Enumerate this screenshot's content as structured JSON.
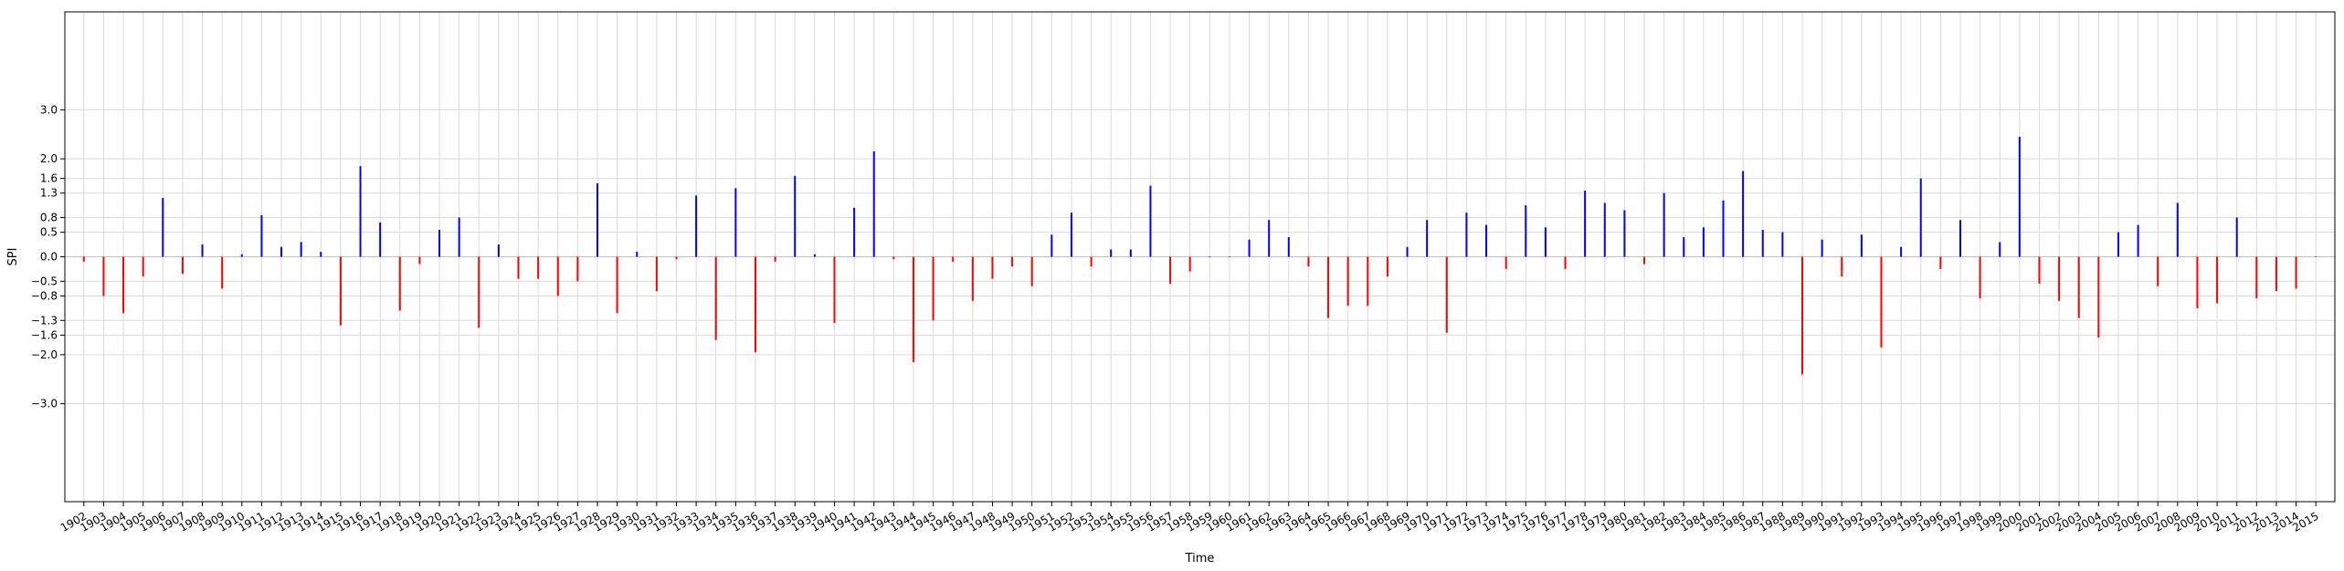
{
  "chart_data": {
    "type": "bar",
    "title": "",
    "xlabel": "Time",
    "ylabel": "SPI",
    "ylim": [
      -5,
      5
    ],
    "yticks": [
      -3.0,
      -2.0,
      -1.6,
      -1.3,
      -0.8,
      -0.5,
      0.0,
      0.5,
      0.8,
      1.3,
      1.6,
      2.0,
      3.0
    ],
    "ytick_labels": [
      "−3.0",
      "−2.0",
      "−1.6",
      "−1.3",
      "−0.8",
      "−0.5",
      "0.0",
      "0.5",
      "0.8",
      "1.3",
      "1.6",
      "2.0",
      "3.0"
    ],
    "grid": true,
    "colors": {
      "positive": "#0000ff",
      "negative": "#ff0000",
      "grid": "#d9d9d9",
      "axis": "#000000"
    },
    "years": [
      1902,
      1903,
      1904,
      1905,
      1906,
      1907,
      1908,
      1909,
      1910,
      1911,
      1912,
      1913,
      1914,
      1915,
      1916,
      1917,
      1918,
      1919,
      1920,
      1921,
      1922,
      1923,
      1924,
      1925,
      1926,
      1927,
      1928,
      1929,
      1930,
      1931,
      1932,
      1933,
      1934,
      1935,
      1936,
      1937,
      1938,
      1939,
      1940,
      1941,
      1942,
      1943,
      1944,
      1945,
      1946,
      1947,
      1948,
      1949,
      1950,
      1951,
      1952,
      1953,
      1954,
      1955,
      1956,
      1957,
      1958,
      1959,
      1960,
      1961,
      1962,
      1963,
      1964,
      1965,
      1966,
      1967,
      1968,
      1969,
      1970,
      1971,
      1972,
      1973,
      1974,
      1975,
      1976,
      1977,
      1978,
      1979,
      1980,
      1981,
      1982,
      1983,
      1984,
      1985,
      1986,
      1987,
      1988,
      1989,
      1990,
      1991,
      1992,
      1993,
      1994,
      1995,
      1996,
      1997,
      1998,
      1999,
      2000,
      2001,
      2002,
      2003,
      2004,
      2005,
      2006,
      2007,
      2008,
      2009,
      2010,
      2011,
      2012,
      2013,
      2014,
      2015
    ],
    "tick_labels": [
      "1902",
      "1903",
      "1904",
      "1905",
      "1906",
      "1907",
      "1908",
      "1909",
      "1910",
      "1911",
      "1912",
      "1913",
      "1914",
      "1915",
      "1916",
      "1917",
      "1918",
      "1919",
      "1920",
      "1921",
      "1922",
      "1923",
      "1924",
      "1925",
      "1926",
      "1927",
      "1928",
      "1929",
      "1930",
      "1931",
      "1932",
      "1933",
      "1934",
      "1935",
      "1936",
      "1937",
      "1938",
      "1939",
      "1940",
      "1941",
      "1942",
      "1943",
      "1944",
      "1945",
      "1946",
      "1947",
      "1948",
      "1949",
      "1950",
      "1951",
      "1952",
      "1953",
      "1954",
      "1955",
      "1956",
      "1957",
      "1958",
      "1959",
      "1960",
      "1961",
      "1962",
      "1963",
      "1964",
      "1965",
      "1966",
      "1967",
      "1968",
      "1969",
      "1970",
      "1971",
      "1972",
      "1973",
      "1974",
      "1975",
      "1976",
      "1977",
      "1978",
      "1979",
      "1980",
      "1981",
      "1982",
      "1983",
      "1984",
      "1985",
      "1986",
      "1987",
      "1988",
      "1989",
      "1990",
      "1991",
      "1992",
      "1993",
      "1994",
      "1995",
      "1996",
      "1997",
      "1998",
      "1999",
      "2000",
      "2001",
      "2002",
      "2003",
      "2004",
      "2005",
      "2006",
      "2007",
      "2008",
      "2009",
      "2010",
      "2011",
      "2012",
      "2013",
      "2014",
      "2015"
    ],
    "values": [
      -0.1,
      -0.8,
      -1.15,
      -0.4,
      1.2,
      -0.35,
      0.25,
      -0.65,
      0.05,
      0.85,
      0.2,
      0.3,
      0.1,
      -1.4,
      1.85,
      0.7,
      -1.1,
      -0.15,
      0.55,
      0.8,
      -1.45,
      0.25,
      -0.45,
      -0.45,
      -0.8,
      -0.5,
      1.5,
      -1.15,
      0.1,
      -0.7,
      -0.05,
      1.25,
      -1.7,
      1.4,
      -1.95,
      -0.1,
      1.65,
      0.05,
      -1.35,
      1.0,
      2.15,
      -0.05,
      -2.15,
      -1.3,
      -0.1,
      -0.9,
      -0.45,
      -0.2,
      -0.6,
      0.45,
      0.9,
      -0.2,
      0.15,
      0.15,
      1.45,
      -0.55,
      -0.3,
      0.0,
      0.0,
      0.35,
      0.75,
      0.4,
      -0.2,
      -1.25,
      -1.0,
      -1.0,
      -0.4,
      0.2,
      0.75,
      -1.55,
      0.9,
      0.65,
      -0.25,
      1.05,
      0.6,
      -0.25,
      1.35,
      1.1,
      0.95,
      -0.15,
      1.3,
      0.4,
      0.6,
      1.15,
      1.75,
      0.55,
      0.5,
      -2.4,
      0.35,
      -0.4,
      0.45,
      -1.85,
      0.2,
      1.6,
      -0.25,
      0.75,
      -0.85,
      0.3,
      2.45,
      -0.55,
      -0.9,
      -1.25,
      -1.65,
      0.5,
      0.65,
      -0.6,
      1.1,
      -1.05,
      -0.95,
      0.8,
      -0.85,
      -0.7,
      -0.65,
      0.0
    ]
  }
}
